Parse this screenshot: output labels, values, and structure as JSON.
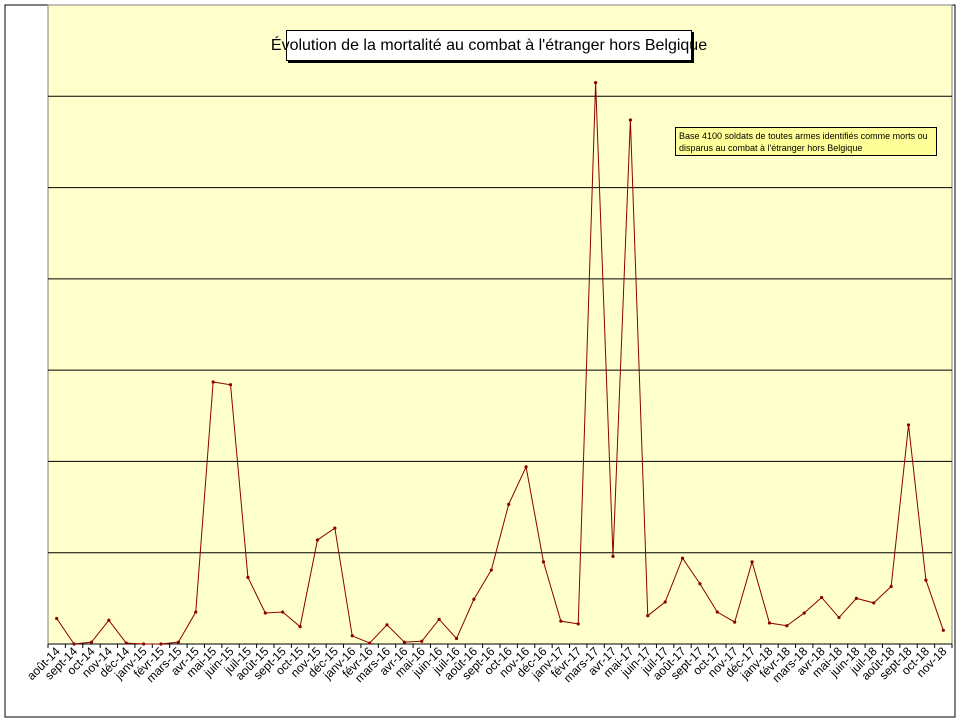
{
  "chart_data": {
    "type": "line",
    "title": "Évolution de la mortalité au combat à l'étranger hors Belgique",
    "annotation": "Base 4100 soldats de toutes armes identifiés comme morts ou disparus au combat à l'étranger hors Belgique",
    "categories": [
      "août-14",
      "sept-14",
      "oct-14",
      "nov-14",
      "déc-14",
      "janv-15",
      "févr-15",
      "mars-15",
      "avr-15",
      "mai-15",
      "juin-15",
      "juil-15",
      "août-15",
      "sept-15",
      "oct-15",
      "nov-15",
      "déc-15",
      "janv-16",
      "févr-16",
      "mars-16",
      "avr-16",
      "mai-16",
      "juin-16",
      "juil-16",
      "août-16",
      "sept-16",
      "oct-16",
      "nov-16",
      "déc-16",
      "janv-17",
      "févr-17",
      "mars-17",
      "avr-17",
      "mai-17",
      "juin-17",
      "juil-17",
      "août-17",
      "sept-17",
      "oct-17",
      "nov-17",
      "déc-17",
      "janv-18",
      "févr-18",
      "mars-18",
      "avr-18",
      "mai-18",
      "juin-18",
      "juil-18",
      "août-18",
      "sept-18",
      "oct-18",
      "nov-18"
    ],
    "series": [
      {
        "values": [
          28,
          0,
          2,
          26,
          1,
          0,
          0,
          2,
          35,
          287,
          284,
          73,
          34,
          35,
          19,
          114,
          127,
          9,
          1,
          21,
          2,
          3,
          27,
          6,
          49,
          81,
          153,
          194,
          90,
          25,
          22,
          615,
          96,
          574,
          31,
          46,
          94,
          66,
          35,
          24,
          90,
          23,
          20,
          34,
          51,
          29,
          50,
          45,
          63,
          240,
          70,
          15
        ],
        "color": "#8b0000"
      }
    ],
    "ylim": [
      0,
      700
    ],
    "y_gridlines": [
      100,
      200,
      300,
      400,
      500,
      600
    ],
    "grid": true,
    "plot_background": "#ffffcc"
  }
}
